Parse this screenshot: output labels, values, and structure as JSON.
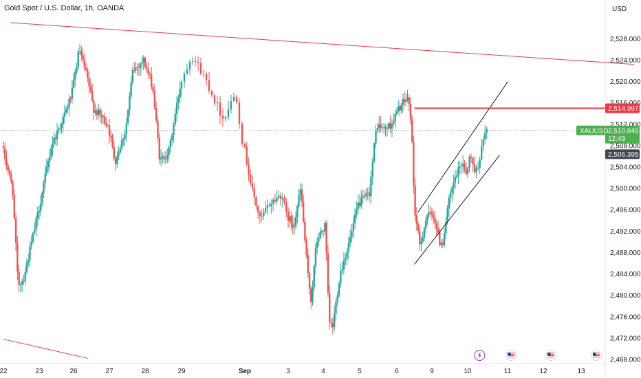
{
  "chart_data": {
    "type": "candlestick",
    "title": "Gold Spot / U.S. Dollar, 1h, OANDA",
    "symbol": "XAUUSD",
    "currency": "USD",
    "ylim": [
      2467,
      2532
    ],
    "y_ticks": [
      "2,528.000",
      "2,524.000",
      "2,520.000",
      "2,516.000",
      "2,512.000",
      "2,508.000",
      "2,504.000",
      "2,500.000",
      "2,496.000",
      "2,492.000",
      "2,488.000",
      "2,484.000",
      "2,480.000",
      "2,476.000",
      "2,472.000",
      "2,468.000"
    ],
    "x_ticks": [
      {
        "label": "22",
        "x": 0,
        "bold": false
      },
      {
        "label": "23",
        "x": 1,
        "bold": false
      },
      {
        "label": "26",
        "x": 2,
        "bold": false
      },
      {
        "label": "27",
        "x": 3,
        "bold": false
      },
      {
        "label": "28",
        "x": 4,
        "bold": false
      },
      {
        "label": "29",
        "x": 5,
        "bold": false
      },
      {
        "label": "Sep",
        "x": 6,
        "bold": true
      },
      {
        "label": "3",
        "x": 7,
        "bold": false
      },
      {
        "label": "4",
        "x": 8,
        "bold": false
      },
      {
        "label": "5",
        "x": 9,
        "bold": false
      },
      {
        "label": "6",
        "x": 10,
        "bold": false
      },
      {
        "label": "9",
        "x": 11,
        "bold": false
      },
      {
        "label": "10",
        "x": 12,
        "bold": false
      },
      {
        "label": "11",
        "x": 13,
        "bold": false
      },
      {
        "label": "12",
        "x": 14,
        "bold": false
      },
      {
        "label": "13",
        "x": 15,
        "bold": false
      }
    ],
    "price_path": [
      [
        0.0,
        2508
      ],
      [
        0.3,
        2500
      ],
      [
        0.45,
        2482
      ],
      [
        0.6,
        2483
      ],
      [
        1.0,
        2495
      ],
      [
        1.4,
        2508
      ],
      [
        1.8,
        2514
      ],
      [
        2.0,
        2518
      ],
      [
        2.2,
        2526
      ],
      [
        2.45,
        2520
      ],
      [
        2.6,
        2515
      ],
      [
        3.0,
        2512
      ],
      [
        3.2,
        2505
      ],
      [
        3.5,
        2511
      ],
      [
        3.7,
        2522
      ],
      [
        4.0,
        2524
      ],
      [
        4.25,
        2519
      ],
      [
        4.45,
        2505
      ],
      [
        4.7,
        2507
      ],
      [
        5.0,
        2519
      ],
      [
        5.2,
        2525
      ],
      [
        5.4,
        2521
      ],
      [
        5.7,
        2513
      ],
      [
        5.9,
        2518
      ],
      [
        6.0,
        2509
      ],
      [
        6.2,
        2500
      ],
      [
        6.4,
        2494
      ],
      [
        6.6,
        2497
      ],
      [
        6.9,
        2499
      ],
      [
        7.0,
        2495
      ],
      [
        7.2,
        2493
      ],
      [
        7.4,
        2500
      ],
      [
        7.6,
        2484
      ],
      [
        7.7,
        2479
      ],
      [
        7.85,
        2490
      ],
      [
        8.0,
        2492
      ],
      [
        8.1,
        2493
      ],
      [
        8.2,
        2475
      ],
      [
        8.3,
        2474
      ],
      [
        8.5,
        2484
      ],
      [
        8.8,
        2491
      ],
      [
        9.0,
        2497
      ],
      [
        9.3,
        2499
      ],
      [
        9.5,
        2512
      ],
      [
        9.7,
        2511
      ],
      [
        9.9,
        2512
      ],
      [
        10.1,
        2515
      ],
      [
        10.35,
        2517
      ],
      [
        10.45,
        2513
      ],
      [
        10.55,
        2496
      ],
      [
        10.7,
        2489
      ],
      [
        10.9,
        2495
      ],
      [
        11.1,
        2495
      ],
      [
        11.25,
        2490
      ],
      [
        11.35,
        2490
      ],
      [
        11.5,
        2497
      ],
      [
        11.7,
        2502
      ],
      [
        11.9,
        2505
      ],
      [
        12.0,
        2503
      ],
      [
        12.1,
        2506
      ],
      [
        12.25,
        2503
      ],
      [
        12.35,
        2506
      ],
      [
        12.5,
        2511
      ]
    ],
    "last_price": "2,510.845",
    "countdown": "12:49",
    "resistance_price": "2,514.997",
    "prev_close": "2,506.395",
    "colors": {
      "up": "#26a69a",
      "down": "#ef5350",
      "trendline": "#f23645",
      "channel": "#131722",
      "last_price_tag": "#4caf50",
      "resistance_tag": "#f23645",
      "prev_close_tag": "#434651",
      "dotted": "#9598a1"
    },
    "events": [
      {
        "label": "Lightning event",
        "x": 12.3
      },
      {
        "label": "US event",
        "x": 13.1
      },
      {
        "label": "US event",
        "x": 14.2
      },
      {
        "label": "US event",
        "x": 15.4
      }
    ],
    "annotations": {
      "upper_trendline": [
        [
          0.2,
          2531
        ],
        [
          16.4,
          2523.2
        ]
      ],
      "lower_trendline": [
        [
          0.0,
          2471.8
        ],
        [
          2.4,
          2468.2
        ]
      ],
      "resistance_line_start_x": 10.5,
      "channel_upper": [
        [
          10.6,
          2495.5
        ],
        [
          13.0,
          2519.9
        ]
      ],
      "channel_lower": [
        [
          10.5,
          2485.8
        ],
        [
          12.8,
          2506.2
        ]
      ]
    }
  }
}
